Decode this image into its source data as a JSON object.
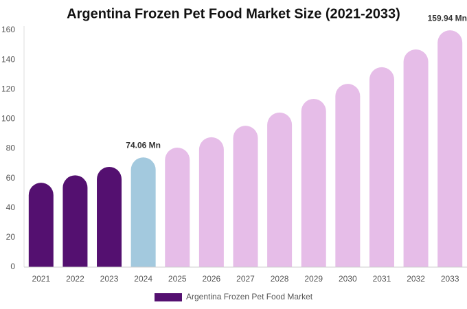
{
  "chart_data": {
    "type": "bar",
    "title": "Argentina Frozen Pet Food Market Size (2021-2033)",
    "categories": [
      "2021",
      "2022",
      "2023",
      "2024",
      "2025",
      "2026",
      "2027",
      "2028",
      "2029",
      "2030",
      "2031",
      "2032",
      "2033"
    ],
    "series": [
      {
        "name": "Argentina Frozen Pet Food Market",
        "color": "#541070",
        "colors": [
          "#541070",
          "#541070",
          "#541070",
          "#a3c9de",
          "#e6bde8",
          "#e6bde8",
          "#e6bde8",
          "#e6bde8",
          "#e6bde8",
          "#e6bde8",
          "#e6bde8",
          "#e6bde8",
          "#e6bde8"
        ],
        "values": [
          57,
          62,
          67.7,
          74.06,
          80.7,
          87.7,
          95.5,
          104.4,
          113.6,
          123.8,
          135,
          147,
          159.94
        ],
        "value_labels": [
          null,
          null,
          null,
          "74.06 Mn",
          null,
          null,
          null,
          null,
          null,
          null,
          null,
          null,
          "159.94 Mn"
        ]
      }
    ],
    "ylim": [
      0,
      160
    ],
    "yticks": [
      0,
      20,
      40,
      60,
      80,
      100,
      120,
      140,
      160
    ],
    "grid": false
  }
}
